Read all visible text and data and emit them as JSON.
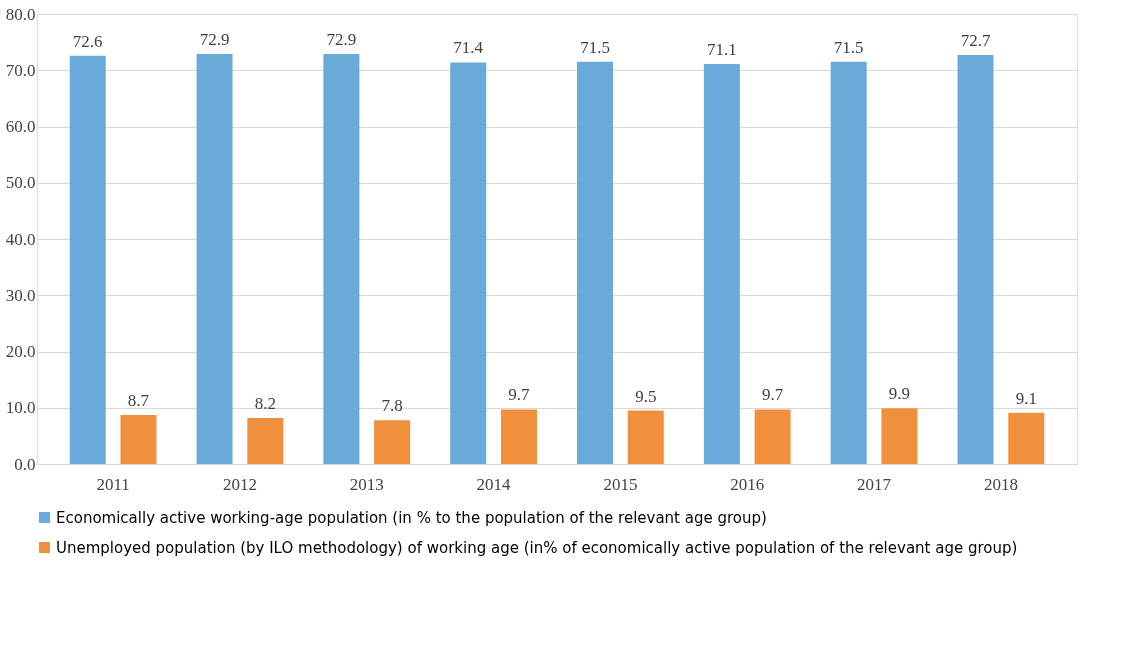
{
  "chart_data": {
    "type": "bar",
    "categories": [
      "2011",
      "2012",
      "2013",
      "2014",
      "2015",
      "2016",
      "2017",
      "2018"
    ],
    "series": [
      {
        "name": "Economically active working-age population (in % to the population of the relevant age group)",
        "color": "#6aaadb",
        "values": [
          72.6,
          72.9,
          72.9,
          71.4,
          71.5,
          71.1,
          71.5,
          72.7
        ]
      },
      {
        "name": "Unemployed population (by ILO methodology) of working age (in% of economically active population of the relevant age group)",
        "color": "#f0903c",
        "values": [
          8.7,
          8.2,
          7.8,
          9.7,
          9.5,
          9.7,
          9.9,
          9.1
        ]
      }
    ],
    "ylim": [
      0,
      80
    ],
    "yticks": [
      {
        "value": 0,
        "label": "0.0"
      },
      {
        "value": 10,
        "label": "10.0"
      },
      {
        "value": 20,
        "label": "20.0"
      },
      {
        "value": 30,
        "label": "30.0"
      },
      {
        "value": 40,
        "label": "40.0"
      },
      {
        "value": 50,
        "label": "50.0"
      },
      {
        "value": 60,
        "label": "60.0"
      },
      {
        "value": 70,
        "label": "70.0"
      },
      {
        "value": 80,
        "label": "80.0"
      }
    ],
    "grid": "y",
    "legend": "bottom",
    "data_labels": true
  }
}
